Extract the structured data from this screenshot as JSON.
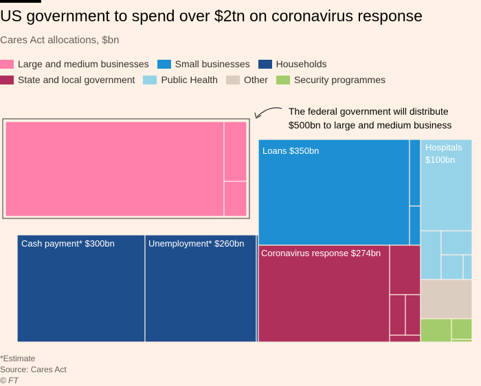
{
  "header": {
    "title": "US government to spend over $2tn on coronavirus response",
    "subtitle": "Cares Act allocations, $bn"
  },
  "legend": {
    "row1": [
      {
        "label": "Large and medium businesses",
        "color": "#ff7fab"
      },
      {
        "label": "Small businesses",
        "color": "#1e8fd2"
      },
      {
        "label": "Households",
        "color": "#1f4e8c"
      }
    ],
    "row2": [
      {
        "label": "State and local government",
        "color": "#b0305c"
      },
      {
        "label": "Public Health",
        "color": "#96d3e8"
      },
      {
        "label": "Other",
        "color": "#dbcdc0"
      },
      {
        "label": "Security programmes",
        "color": "#a3cd6c"
      }
    ]
  },
  "annotation": {
    "line1": "The federal government will distribute",
    "line2": "$500bn to large and medium business"
  },
  "footer": {
    "estimate_note": "*Estimate",
    "source": "Source: Cares Act",
    "copyright": "© FT"
  },
  "chart_data": {
    "type": "treemap",
    "title": "US government to spend over $2tn on coronavirus response",
    "subtitle": "Cares Act allocations, $bn",
    "units": "$bn",
    "categories": [
      {
        "name": "Large and medium businesses",
        "color": "#ff7fab",
        "total": 500,
        "labelled_items": []
      },
      {
        "name": "Small businesses",
        "color": "#1e8fd2",
        "labelled_items": [
          {
            "label": "Loans $350bn",
            "value": 350
          }
        ]
      },
      {
        "name": "Households",
        "color": "#1f4e8c",
        "labelled_items": [
          {
            "label": "Cash payment* $300bn",
            "value": 300
          },
          {
            "label": "Unemployment* $260bn",
            "value": 260
          }
        ]
      },
      {
        "name": "State and local government",
        "color": "#b0305c",
        "labelled_items": [
          {
            "label": "Coronavirus response $274bn",
            "value": 274
          }
        ]
      },
      {
        "name": "Public Health",
        "color": "#96d3e8",
        "labelled_items": [
          {
            "label": "Hospitals $100bn",
            "value": 100
          }
        ]
      },
      {
        "name": "Other",
        "color": "#dbcdc0",
        "labelled_items": []
      },
      {
        "name": "Security programmes",
        "color": "#a3cd6c",
        "labelled_items": []
      }
    ]
  }
}
